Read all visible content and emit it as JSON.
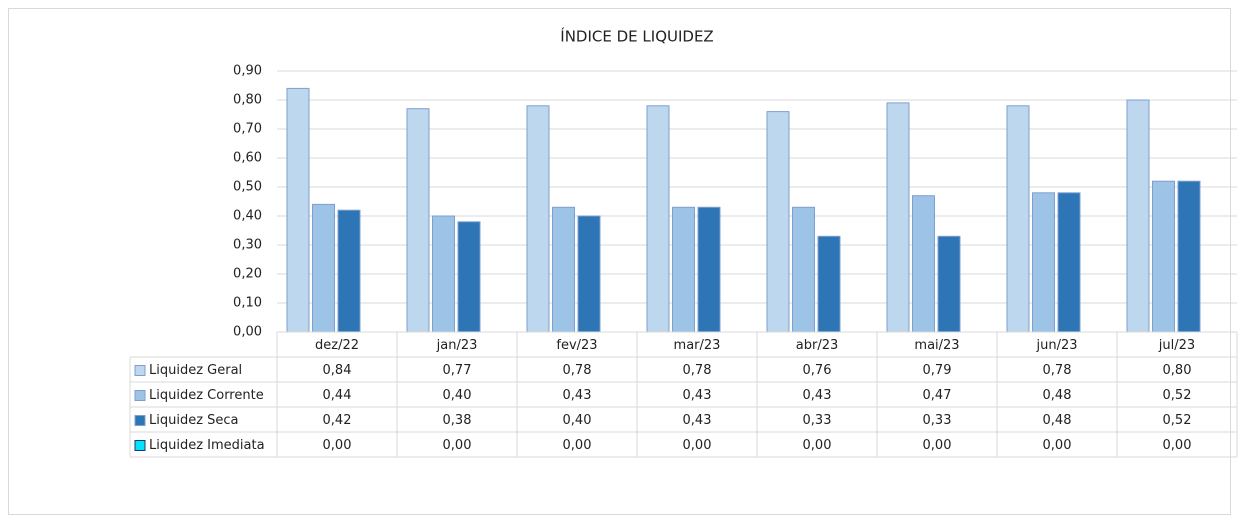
{
  "chart_data": {
    "type": "bar",
    "title": "ÍNDICE DE LIQUIDEZ",
    "categories": [
      "dez/22",
      "jan/23",
      "fev/23",
      "mar/23",
      "abr/23",
      "mai/23",
      "jun/23",
      "jul/23"
    ],
    "series": [
      {
        "name": "Liquidez Geral",
        "color": "#bdd7ee",
        "values": [
          0.84,
          0.77,
          0.78,
          0.78,
          0.76,
          0.79,
          0.78,
          0.8
        ],
        "value_labels": [
          "0,84",
          "0,77",
          "0,78",
          "0,78",
          "0,76",
          "0,79",
          "0,78",
          "0,80"
        ]
      },
      {
        "name": "Liquidez Corrente",
        "color": "#9dc3e6",
        "values": [
          0.44,
          0.4,
          0.43,
          0.43,
          0.43,
          0.47,
          0.48,
          0.52
        ],
        "value_labels": [
          "0,44",
          "0,40",
          "0,43",
          "0,43",
          "0,43",
          "0,47",
          "0,48",
          "0,52"
        ]
      },
      {
        "name": "Liquidez Seca",
        "color": "#2e75b6",
        "values": [
          0.42,
          0.38,
          0.4,
          0.43,
          0.33,
          0.33,
          0.48,
          0.52
        ],
        "value_labels": [
          "0,42",
          "0,38",
          "0,40",
          "0,43",
          "0,33",
          "0,33",
          "0,48",
          "0,52"
        ]
      },
      {
        "name": "Liquidez Imediata",
        "color": "#00e5ff",
        "values": [
          0,
          0,
          0,
          0,
          0,
          0,
          0,
          0
        ],
        "value_labels": [
          "0,00",
          "0,00",
          "0,00",
          "0,00",
          "0,00",
          "0,00",
          "0,00",
          "0,00"
        ]
      }
    ],
    "ylim": [
      0,
      0.9
    ],
    "yticks": [
      {
        "value": 0,
        "label": "0,00"
      },
      {
        "value": 0.1,
        "label": "0,10"
      },
      {
        "value": 0.2,
        "label": "0,20"
      },
      {
        "value": 0.3,
        "label": "0,30"
      },
      {
        "value": 0.4,
        "label": "0,40"
      },
      {
        "value": 0.5,
        "label": "0,50"
      },
      {
        "value": 0.6,
        "label": "0,60"
      },
      {
        "value": 0.7,
        "label": "0,70"
      },
      {
        "value": 0.8,
        "label": "0,80"
      },
      {
        "value": 0.9,
        "label": "0,90"
      }
    ],
    "grid": true
  }
}
